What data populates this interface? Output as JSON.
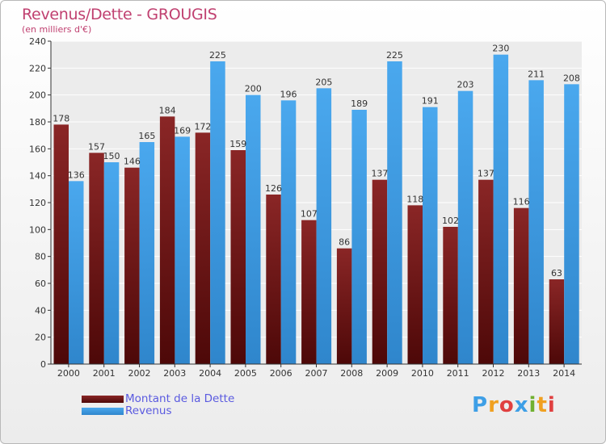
{
  "header": {
    "title": "Revenus/Dette - GROUGIS",
    "subtitle": "(en milliers d'€)"
  },
  "chart_data": {
    "type": "bar",
    "title": "Revenus/Dette - GROUGIS",
    "ylabel": "(en milliers d'€)",
    "xlabel": "",
    "categories": [
      "2000",
      "2001",
      "2002",
      "2003",
      "2004",
      "2005",
      "2006",
      "2007",
      "2008",
      "2009",
      "2010",
      "2011",
      "2012",
      "2013",
      "2014"
    ],
    "series": [
      {
        "name": "Montant de la Dette",
        "color": "#7a1c1c",
        "values": [
          178,
          157,
          146,
          184,
          172,
          159,
          126,
          107,
          86,
          137,
          118,
          102,
          137,
          116,
          63
        ]
      },
      {
        "name": "Revenus",
        "color": "#3e9fe6",
        "values": [
          136,
          150,
          165,
          169,
          225,
          200,
          196,
          205,
          189,
          225,
          191,
          203,
          230,
          211,
          208
        ]
      }
    ],
    "ylim": [
      0,
      240
    ],
    "yticks": [
      0,
      20,
      40,
      60,
      80,
      100,
      120,
      140,
      160,
      180,
      200,
      220,
      240
    ],
    "grid": true,
    "legend": "bottom-left"
  },
  "legend": {
    "items": [
      {
        "label": "Montant de la Dette",
        "color": "#7a1c1c"
      },
      {
        "label": "Revenus",
        "color": "#3e9fe6"
      }
    ]
  },
  "brand": {
    "letters": [
      "P",
      "r",
      "o",
      "x",
      "i",
      "t",
      "i"
    ],
    "colors": [
      "#3e9fe6",
      "#f0a020",
      "#e04040",
      "#3e9fe6",
      "#70b030",
      "#f0a020",
      "#e04040"
    ]
  }
}
